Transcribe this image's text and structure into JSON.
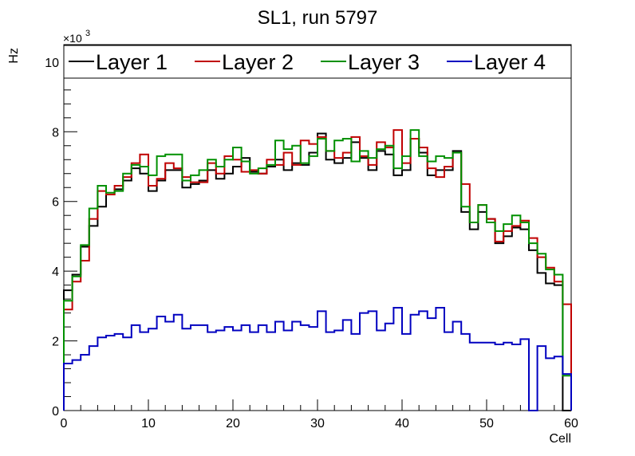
{
  "chart_data": {
    "type": "line",
    "title": "SL1, run 5797",
    "xlabel": "Cell",
    "ylabel": "Hz",
    "y_multiplier": "×10",
    "y_multiplier_exp": "3",
    "xlim": [
      0,
      60
    ],
    "ylim": [
      0,
      10.5
    ],
    "x_ticks": [
      0,
      10,
      20,
      30,
      40,
      50,
      60
    ],
    "y_ticks": [
      0,
      2,
      4,
      6,
      8,
      10
    ],
    "legend_position": "top",
    "series": [
      {
        "name": "Layer 1",
        "color": "#000000",
        "values": [
          3.45,
          3.9,
          4.7,
          5.3,
          5.85,
          6.2,
          6.35,
          6.6,
          6.95,
          6.8,
          6.3,
          6.6,
          6.9,
          6.9,
          6.4,
          6.5,
          6.6,
          6.9,
          6.65,
          6.8,
          7.0,
          7.25,
          6.85,
          6.8,
          7.0,
          7.2,
          6.9,
          7.1,
          7.05,
          7.4,
          7.95,
          7.2,
          7.1,
          7.25,
          7.7,
          7.25,
          6.9,
          7.45,
          7.35,
          6.75,
          6.9,
          7.8,
          7.4,
          6.75,
          6.9,
          6.9,
          7.45,
          5.7,
          5.2,
          5.7,
          5.5,
          4.8,
          5.0,
          5.25,
          5.2,
          4.6,
          3.95,
          3.65,
          3.6,
          0.0
        ]
      },
      {
        "name": "Layer 2",
        "color": "#c00000",
        "values": [
          2.9,
          3.7,
          4.3,
          5.5,
          6.3,
          6.2,
          6.45,
          6.7,
          7.1,
          7.35,
          6.45,
          6.65,
          7.1,
          6.95,
          6.7,
          6.55,
          6.55,
          7.1,
          6.8,
          7.3,
          7.2,
          6.85,
          6.9,
          6.8,
          7.2,
          7.05,
          7.4,
          7.05,
          7.75,
          7.65,
          7.85,
          7.45,
          7.25,
          7.4,
          7.85,
          7.3,
          7.05,
          7.7,
          7.55,
          8.05,
          7.1,
          7.8,
          7.55,
          6.95,
          6.7,
          7.0,
          7.4,
          6.5,
          5.4,
          5.9,
          5.5,
          4.85,
          5.15,
          5.3,
          5.45,
          4.95,
          4.4,
          4.1,
          3.7,
          3.05
        ]
      },
      {
        "name": "Layer 3",
        "color": "#009000",
        "values": [
          3.15,
          3.85,
          4.75,
          5.8,
          6.45,
          6.25,
          6.3,
          6.8,
          7.05,
          7.0,
          6.75,
          7.3,
          7.35,
          7.35,
          6.6,
          6.75,
          6.9,
          7.2,
          7.0,
          7.2,
          7.55,
          7.15,
          6.8,
          6.95,
          7.05,
          7.75,
          7.5,
          7.6,
          7.1,
          7.3,
          7.8,
          7.45,
          7.75,
          7.8,
          7.15,
          7.45,
          7.25,
          7.5,
          7.6,
          6.95,
          7.3,
          8.05,
          7.3,
          7.15,
          7.3,
          7.25,
          7.4,
          5.85,
          5.4,
          5.9,
          5.4,
          5.15,
          5.35,
          5.6,
          5.4,
          4.8,
          4.5,
          4.05,
          3.9,
          1.0
        ]
      },
      {
        "name": "Layer 4",
        "color": "#0000c0",
        "values": [
          1.35,
          1.45,
          1.6,
          1.85,
          2.1,
          2.15,
          2.2,
          2.1,
          2.45,
          2.25,
          2.35,
          2.7,
          2.55,
          2.75,
          2.35,
          2.45,
          2.45,
          2.25,
          2.3,
          2.4,
          2.3,
          2.45,
          2.25,
          2.45,
          2.25,
          2.55,
          2.3,
          2.55,
          2.45,
          2.4,
          2.85,
          2.25,
          2.3,
          2.6,
          2.2,
          2.8,
          2.85,
          2.3,
          2.5,
          2.95,
          2.2,
          2.75,
          2.85,
          2.65,
          2.95,
          2.25,
          2.55,
          2.2,
          1.95,
          1.95,
          1.95,
          1.9,
          1.95,
          1.9,
          2.05,
          0.0,
          1.85,
          1.5,
          1.55,
          1.05
        ]
      }
    ]
  }
}
